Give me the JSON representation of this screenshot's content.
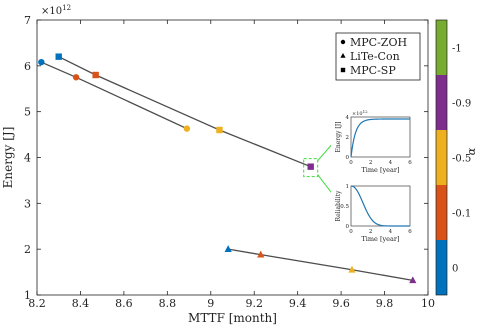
{
  "chart_data": {
    "type": "scatter",
    "xlabel": "MTTF [month]",
    "ylabel": "Energy [J]",
    "y_multiplier_label": "×10",
    "y_multiplier_exponent": "12",
    "xlim": [
      8.2,
      10
    ],
    "ylim": [
      1,
      7
    ],
    "xticks": [
      "8.2",
      "8.4",
      "8.6",
      "8.8",
      "9",
      "9.2",
      "9.4",
      "9.6",
      "9.8",
      "10"
    ],
    "yticks": [
      "1",
      "2",
      "3",
      "4",
      "5",
      "6",
      "7"
    ],
    "legend_position": "top-right",
    "series": [
      {
        "name": "MPC-ZOH",
        "marker": "circle",
        "points": [
          {
            "x": 8.22,
            "y": 6.08,
            "alpha": "0"
          },
          {
            "x": 8.38,
            "y": 5.75,
            "alpha": "-0.1"
          },
          {
            "x": 8.89,
            "y": 4.63,
            "alpha": "-0.5"
          }
        ]
      },
      {
        "name": "LiTe-Con",
        "marker": "triangle",
        "points": [
          {
            "x": 9.08,
            "y": 2.0,
            "alpha": "0"
          },
          {
            "x": 9.23,
            "y": 1.88,
            "alpha": "-0.1"
          },
          {
            "x": 9.65,
            "y": 1.55,
            "alpha": "-0.5"
          },
          {
            "x": 9.93,
            "y": 1.32,
            "alpha": "-0.9"
          }
        ]
      },
      {
        "name": "MPC-SP",
        "marker": "square",
        "points": [
          {
            "x": 8.3,
            "y": 6.2,
            "alpha": "0"
          },
          {
            "x": 8.47,
            "y": 5.8,
            "alpha": "-0.1"
          },
          {
            "x": 9.04,
            "y": 4.6,
            "alpha": "-0.5"
          },
          {
            "x": 9.46,
            "y": 3.8,
            "alpha": "-0.9"
          }
        ]
      }
    ],
    "colorbar": {
      "label": "α",
      "levels": [
        {
          "label": "0",
          "color": "#0072bd"
        },
        {
          "label": "-0.1",
          "color": "#d95319"
        },
        {
          "label": "-0.5",
          "color": "#edb120"
        },
        {
          "label": "-0.9",
          "color": "#7e2f8e"
        },
        {
          "label": "-1",
          "color": "#77ac30"
        }
      ]
    },
    "insets": [
      {
        "xlabel": "Time [year]",
        "ylabel": "Energy [J]",
        "y_multiplier_label": "×10",
        "y_multiplier_exponent": "12",
        "xticks": [
          "0",
          "2",
          "4",
          "6"
        ],
        "yticks": [
          "0",
          "2",
          "4"
        ],
        "xlim": [
          0,
          6
        ],
        "ylim": [
          0,
          4
        ],
        "curve": "rising"
      },
      {
        "xlabel": "Time [year]",
        "ylabel": "Reliability",
        "xticks": [
          "0",
          "2",
          "4",
          "6"
        ],
        "yticks": [
          "0",
          "0.5",
          "1"
        ],
        "xlim": [
          0,
          6
        ],
        "ylim": [
          0,
          1
        ],
        "curve": "decaying"
      }
    ]
  }
}
